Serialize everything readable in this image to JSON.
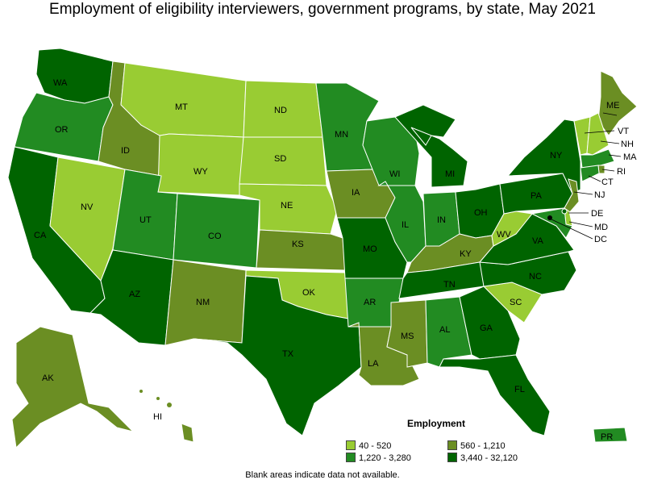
{
  "title": "Employment of eligibility interviewers, government programs, by state, May 2021",
  "footnote": "Blank areas indicate data not available.",
  "legend": {
    "title": "Employment",
    "items": [
      {
        "label": "40 - 520",
        "color": "#99cc33"
      },
      {
        "label": "560 - 1,210",
        "color": "#6b8e23"
      },
      {
        "label": "1,220 - 3,280",
        "color": "#228b22"
      },
      {
        "label": "3,440 - 32,120",
        "color": "#006400"
      }
    ]
  },
  "states": [
    {
      "abbr": "WA",
      "cls": 3
    },
    {
      "abbr": "OR",
      "cls": 2
    },
    {
      "abbr": "CA",
      "cls": 3
    },
    {
      "abbr": "NV",
      "cls": 0
    },
    {
      "abbr": "ID",
      "cls": 1
    },
    {
      "abbr": "MT",
      "cls": 0
    },
    {
      "abbr": "WY",
      "cls": 0
    },
    {
      "abbr": "UT",
      "cls": 2
    },
    {
      "abbr": "CO",
      "cls": 2
    },
    {
      "abbr": "AZ",
      "cls": 3
    },
    {
      "abbr": "NM",
      "cls": 1
    },
    {
      "abbr": "ND",
      "cls": 0
    },
    {
      "abbr": "SD",
      "cls": 0
    },
    {
      "abbr": "NE",
      "cls": 0
    },
    {
      "abbr": "KS",
      "cls": 1
    },
    {
      "abbr": "OK",
      "cls": 0
    },
    {
      "abbr": "TX",
      "cls": 3
    },
    {
      "abbr": "MN",
      "cls": 2
    },
    {
      "abbr": "IA",
      "cls": 1
    },
    {
      "abbr": "MO",
      "cls": 3
    },
    {
      "abbr": "AR",
      "cls": 2
    },
    {
      "abbr": "LA",
      "cls": 1
    },
    {
      "abbr": "WI",
      "cls": 2
    },
    {
      "abbr": "IL",
      "cls": 2
    },
    {
      "abbr": "MI",
      "cls": 3
    },
    {
      "abbr": "IN",
      "cls": 2
    },
    {
      "abbr": "OH",
      "cls": 3
    },
    {
      "abbr": "KY",
      "cls": 1
    },
    {
      "abbr": "TN",
      "cls": 3
    },
    {
      "abbr": "MS",
      "cls": 1
    },
    {
      "abbr": "AL",
      "cls": 2
    },
    {
      "abbr": "GA",
      "cls": 3
    },
    {
      "abbr": "FL",
      "cls": 3
    },
    {
      "abbr": "SC",
      "cls": 0
    },
    {
      "abbr": "NC",
      "cls": 3
    },
    {
      "abbr": "VA",
      "cls": 3
    },
    {
      "abbr": "WV",
      "cls": 0
    },
    {
      "abbr": "PA",
      "cls": 3
    },
    {
      "abbr": "NY",
      "cls": 3
    },
    {
      "abbr": "ME",
      "cls": 1
    },
    {
      "abbr": "VT",
      "cls": 0
    },
    {
      "abbr": "NH",
      "cls": 0
    },
    {
      "abbr": "MA",
      "cls": 2
    },
    {
      "abbr": "RI",
      "cls": 1
    },
    {
      "abbr": "CT",
      "cls": 2
    },
    {
      "abbr": "NJ",
      "cls": 1
    },
    {
      "abbr": "DE",
      "cls": 0
    },
    {
      "abbr": "MD",
      "cls": 2
    },
    {
      "abbr": "DC",
      "cls": 3
    },
    {
      "abbr": "AK",
      "cls": 1
    },
    {
      "abbr": "HI",
      "cls": 1
    },
    {
      "abbr": "PR",
      "cls": 2
    }
  ]
}
